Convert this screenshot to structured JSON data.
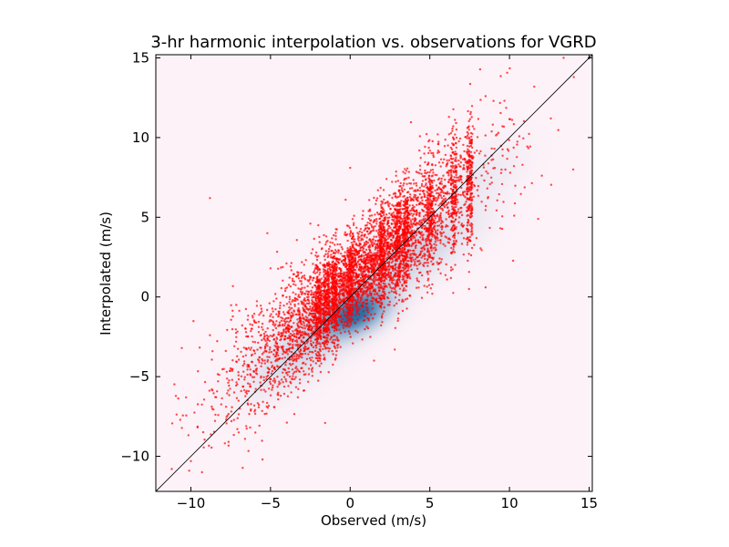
{
  "chart_data": {
    "type": "scatter",
    "title": "3-hr harmonic interpolation vs. observations for VGRD",
    "xlabel": "Observed (m/s)",
    "ylabel": "Interpolated (m/s)",
    "xlim": [
      -12.2,
      15.2
    ],
    "ylim": [
      -12.2,
      15.2
    ],
    "xticks": [
      -10,
      -5,
      0,
      5,
      10,
      15
    ],
    "yticks": [
      -10,
      -5,
      0,
      5,
      10,
      15
    ],
    "xtick_labels": [
      "−10",
      "−5",
      "0",
      "5",
      "10",
      "15"
    ],
    "ytick_labels": [
      "−10",
      "−5",
      "0",
      "5",
      "10",
      "15"
    ],
    "grid": false,
    "legend": "none",
    "reference_line": {
      "description": "1:1 line",
      "x": [
        -12.2,
        15.2
      ],
      "y": [
        -12.2,
        15.2
      ],
      "color": "#000000"
    },
    "density_layer": {
      "description": "kernel density of points (blue shading)",
      "colormap": [
        "#fdf2f8",
        "#2a6fa6"
      ],
      "peak": [
        0.6,
        -0.9
      ],
      "components": [
        {
          "cx": 0.3,
          "cy": -1.0,
          "sx": 1.3,
          "sy": 0.9,
          "rho": 0.45,
          "w": 1.0
        },
        {
          "cx": 3.5,
          "cy": 2.5,
          "sx": 2.6,
          "sy": 1.8,
          "rho": 0.75,
          "w": 0.22
        },
        {
          "cx": -2.5,
          "cy": -2.8,
          "sx": 2.4,
          "sy": 1.9,
          "rho": 0.75,
          "w": 0.2
        },
        {
          "cx": 8.0,
          "cy": 7.5,
          "sx": 1.8,
          "sy": 1.4,
          "rho": 0.6,
          "w": 0.06
        }
      ]
    },
    "series": [
      {
        "color": "#ff0000",
        "marker_size": 1.2,
        "point_estimate_count": 6000,
        "point_cloud": {
          "x_range": [
            -11.5,
            14.2
          ],
          "slope": 0.85,
          "intercept": 0.9,
          "spread_sd": 2.0,
          "dense_columns_x": [
            -2,
            -1.5,
            -1,
            0,
            2,
            3,
            3.5,
            5,
            6.5,
            7.5
          ]
        },
        "points": [
          {
            "x": -8.8,
            "y": 6.2
          },
          {
            "x": 0.0,
            "y": 8.1
          },
          {
            "x": 14.0,
            "y": 8.0
          },
          {
            "x": 13.4,
            "y": 15.0
          },
          {
            "x": 11.8,
            "y": 4.9
          },
          {
            "x": 8.5,
            "y": 0.6
          },
          {
            "x": -11.2,
            "y": -10.8
          },
          {
            "x": -10.0,
            "y": -10.3
          },
          {
            "x": -10.3,
            "y": -6.3
          },
          {
            "x": -9.3,
            "y": -11.0
          },
          {
            "x": -7.0,
            "y": -8.5
          },
          {
            "x": -5.5,
            "y": -10.2
          },
          {
            "x": 12.6,
            "y": 11.2
          },
          {
            "x": 8.5,
            "y": 12.6
          },
          {
            "x": 9.0,
            "y": 12.3
          },
          {
            "x": 2.8,
            "y": -3.3
          },
          {
            "x": 1.5,
            "y": -4.0
          },
          {
            "x": -4.0,
            "y": 2.1
          },
          {
            "x": -5.2,
            "y": 4.0
          },
          {
            "x": -2.5,
            "y": 4.6
          },
          {
            "x": -5.0,
            "y": 1.8
          },
          {
            "x": -2.0,
            "y": 4.5
          },
          {
            "x": 5.5,
            "y": 10.2
          },
          {
            "x": 6.2,
            "y": 11.3
          },
          {
            "x": 10.3,
            "y": 5.1
          },
          {
            "x": 3.0,
            "y": -1.5
          },
          {
            "x": 1.2,
            "y": 3.0
          },
          {
            "x": -1.5,
            "y": 3.8
          },
          {
            "x": 7.0,
            "y": 4.0
          },
          {
            "x": -6.2,
            "y": -2.0
          }
        ]
      }
    ]
  }
}
